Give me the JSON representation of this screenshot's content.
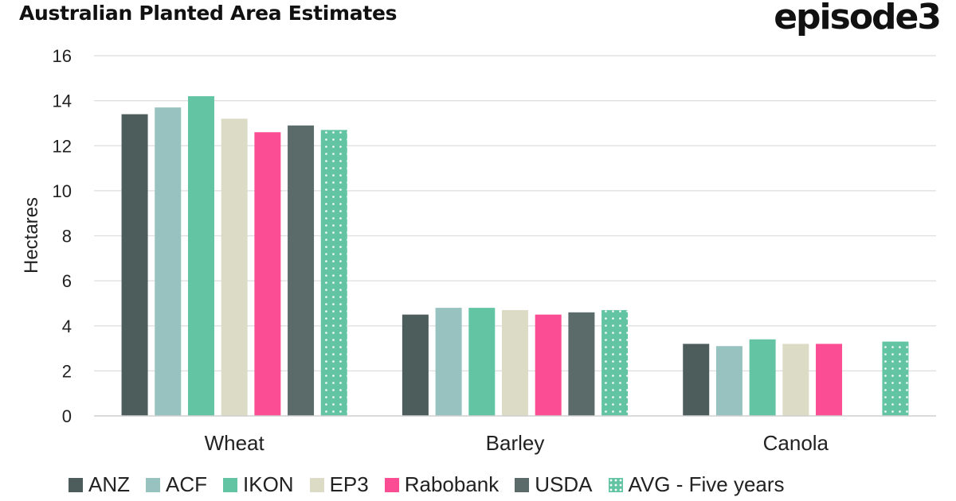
{
  "header": {
    "title": "Australian Planted Area Estimates",
    "brand": "episode3"
  },
  "colors": {
    "ANZ": "#4d5d5c",
    "ACF": "#97c2c0",
    "IKON": "#62c4a2",
    "EP3": "#dcdcc6",
    "Rabobank": "#fa4d93",
    "USDA": "#5a6b6a",
    "AVG - Five years": "#62c4a2"
  },
  "chart_data": {
    "type": "bar",
    "title": "Australian Planted Area Estimates",
    "xlabel": "",
    "ylabel": "Hectares",
    "ylim": [
      0,
      16
    ],
    "yticks": [
      0,
      2,
      4,
      6,
      8,
      10,
      12,
      14,
      16
    ],
    "grid": true,
    "legend_position": "bottom",
    "categories": [
      "Wheat",
      "Barley",
      "Canola"
    ],
    "series": [
      {
        "name": "ANZ",
        "values": [
          13.4,
          4.5,
          3.2
        ]
      },
      {
        "name": "ACF",
        "values": [
          13.7,
          4.8,
          3.1
        ]
      },
      {
        "name": "IKON",
        "values": [
          14.2,
          4.8,
          3.4
        ]
      },
      {
        "name": "EP3",
        "values": [
          13.2,
          4.7,
          3.2
        ]
      },
      {
        "name": "Rabobank",
        "values": [
          12.6,
          4.5,
          3.2
        ]
      },
      {
        "name": "USDA",
        "values": [
          12.9,
          4.6,
          null
        ]
      },
      {
        "name": "AVG - Five years",
        "values": [
          12.7,
          4.7,
          3.3
        ],
        "pattern": "dotted"
      }
    ]
  }
}
